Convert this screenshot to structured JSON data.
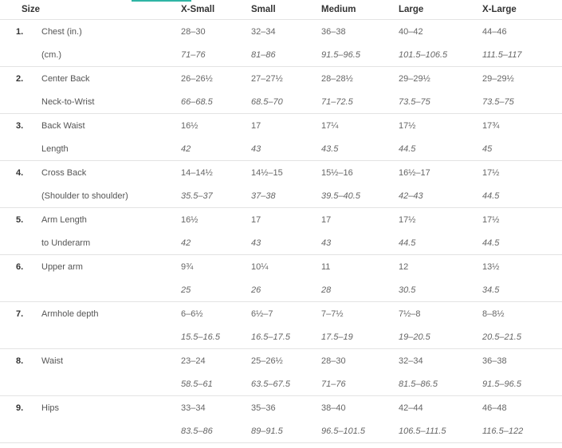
{
  "headers": [
    "Size",
    "X-Small",
    "Small",
    "Medium",
    "Large",
    "X-Large"
  ],
  "rows": [
    {
      "num": "1.",
      "label_top": "Chest (in.)",
      "label_bottom": "(cm.)",
      "top": [
        "28–30",
        "32–34",
        "36–38",
        "40–42",
        "44–46"
      ],
      "bottom": [
        "71–76",
        "81–86",
        "91.5–96.5",
        "101.5–106.5",
        "111.5–117"
      ]
    },
    {
      "num": "2.",
      "label_top": "Center Back",
      "label_bottom": "Neck-to-Wrist",
      "top": [
        "26–26½",
        "27–27½",
        "28–28½",
        "29–29½",
        "29–29½"
      ],
      "bottom": [
        "66–68.5",
        "68.5–70",
        "71–72.5",
        "73.5–75",
        "73.5–75"
      ]
    },
    {
      "num": "3.",
      "label_top": "Back Waist",
      "label_bottom": "Length",
      "top": [
        "16½",
        "17",
        "17¼",
        "17½",
        "17¾"
      ],
      "bottom": [
        "42",
        "43",
        "43.5",
        "44.5",
        "45"
      ]
    },
    {
      "num": "4.",
      "label_top": "Cross Back",
      "label_bottom": "(Shoulder to shoulder)",
      "top": [
        "14–14½",
        "14½–15",
        "15½–16",
        "16½–17",
        "17½"
      ],
      "bottom": [
        "35.5–37",
        "37–38",
        "39.5–40.5",
        "42–43",
        "44.5"
      ]
    },
    {
      "num": "5.",
      "label_top": "Arm Length",
      "label_bottom": "to Underarm",
      "top": [
        "16½",
        "17",
        "17",
        "17½",
        "17½"
      ],
      "bottom": [
        "42",
        "43",
        "43",
        "44.5",
        "44.5"
      ]
    },
    {
      "num": "6.",
      "label_top": "Upper arm",
      "label_bottom": "",
      "top": [
        "9¾",
        "10¼",
        "11",
        "12",
        "13½"
      ],
      "bottom": [
        "25",
        "26",
        "28",
        "30.5",
        "34.5"
      ]
    },
    {
      "num": "7.",
      "label_top": "Armhole depth",
      "label_bottom": "",
      "top": [
        "6–6½",
        "6½–7",
        "7–7½",
        "7½–8",
        "8–8½"
      ],
      "bottom": [
        "15.5–16.5",
        "16.5–17.5",
        "17.5–19",
        "19–20.5",
        "20.5–21.5"
      ]
    },
    {
      "num": "8.",
      "label_top": "Waist",
      "label_bottom": "",
      "top": [
        "23–24",
        "25–26½",
        "28–30",
        "32–34",
        "36–38"
      ],
      "bottom": [
        "58.5–61",
        "63.5–67.5",
        "71–76",
        "81.5–86.5",
        "91.5–96.5"
      ]
    },
    {
      "num": "9.",
      "label_top": "Hips",
      "label_bottom": "",
      "top": [
        "33–34",
        "35–36",
        "38–40",
        "42–44",
        "46–48"
      ],
      "bottom": [
        "83.5–86",
        "89–91.5",
        "96.5–101.5",
        "106.5–111.5",
        "116.5–122"
      ]
    }
  ],
  "colors": {
    "accent": "#2fb5a5",
    "rule": "#e3e3e3"
  }
}
